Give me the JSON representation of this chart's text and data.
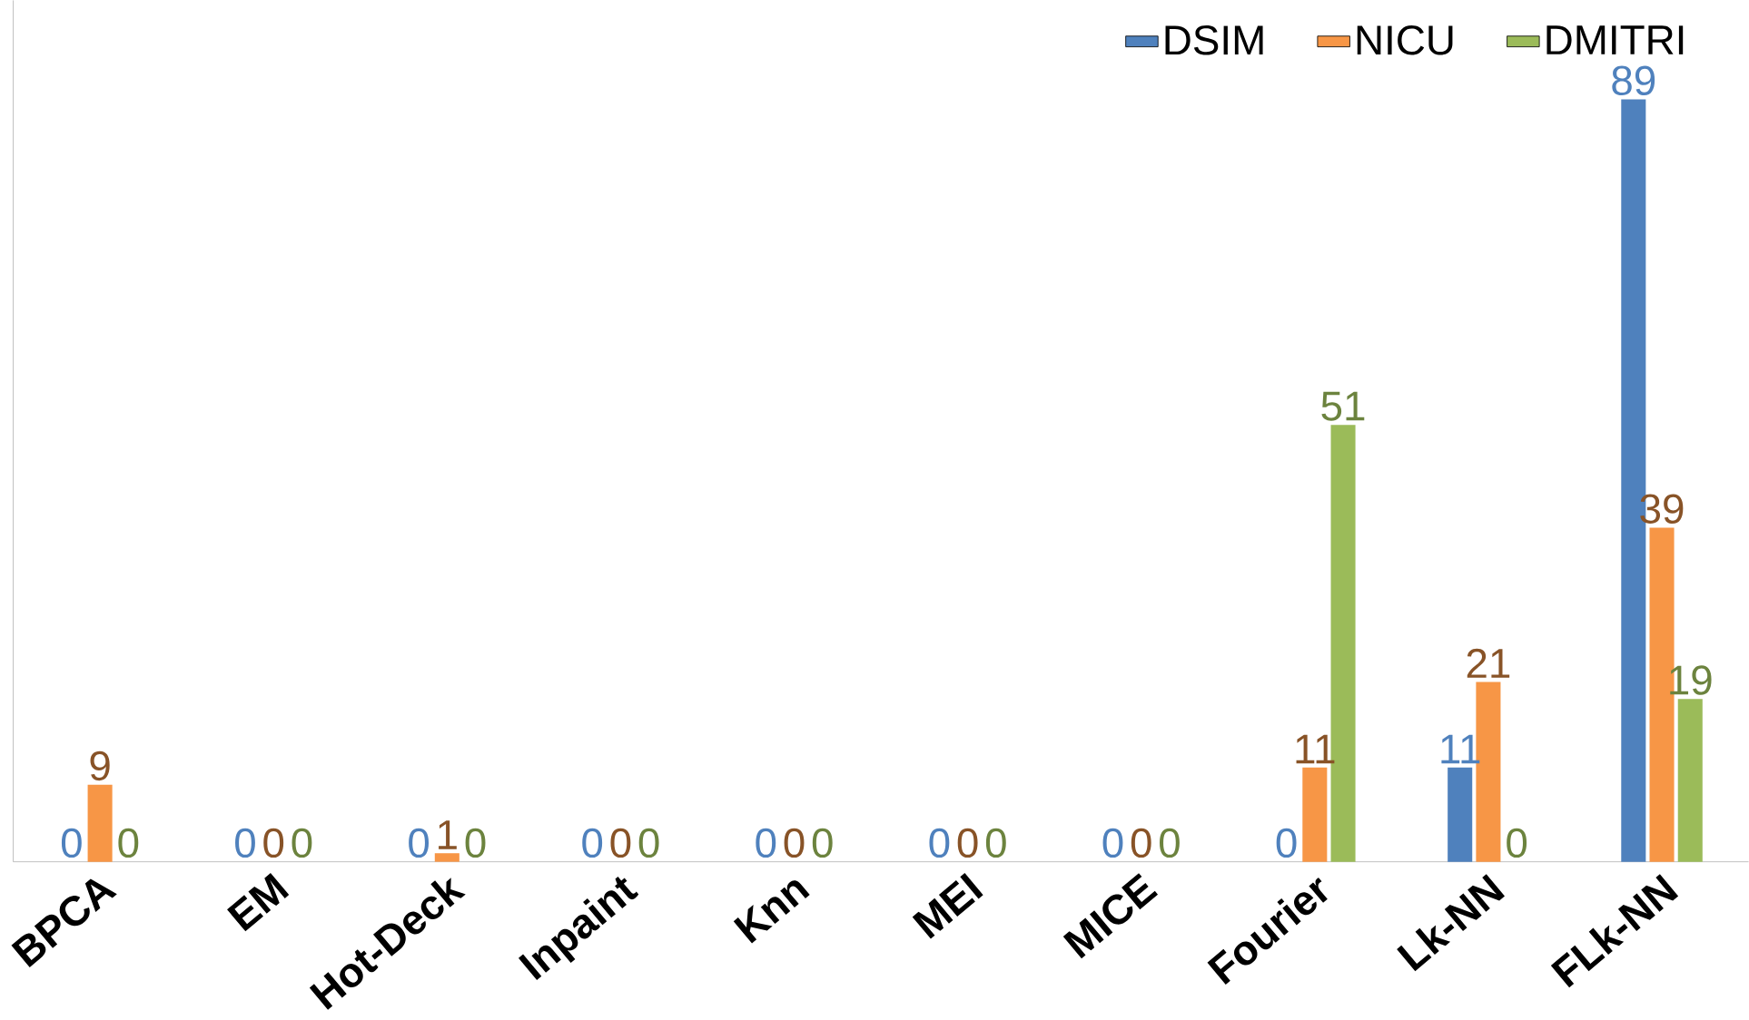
{
  "chart_data": {
    "type": "bar",
    "categories": [
      "BPCA",
      "EM",
      "Hot-Deck",
      "Inpaint",
      "Knn",
      "MEI",
      "MICE",
      "Fourier",
      "Lk-NN",
      "FLk-NN"
    ],
    "series": [
      {
        "name": "DSIM",
        "color": "#4f81bd",
        "values": [
          0,
          0,
          0,
          0,
          0,
          0,
          0,
          0,
          11,
          89
        ]
      },
      {
        "name": "NICU",
        "color": "#f79646",
        "values": [
          9,
          0,
          1,
          0,
          0,
          0,
          0,
          11,
          21,
          39
        ]
      },
      {
        "name": "DMITRI",
        "color": "#9bbb59",
        "values": [
          0,
          0,
          0,
          0,
          0,
          0,
          0,
          51,
          0,
          19
        ]
      }
    ],
    "data_labels": true,
    "legend": "top right"
  }
}
